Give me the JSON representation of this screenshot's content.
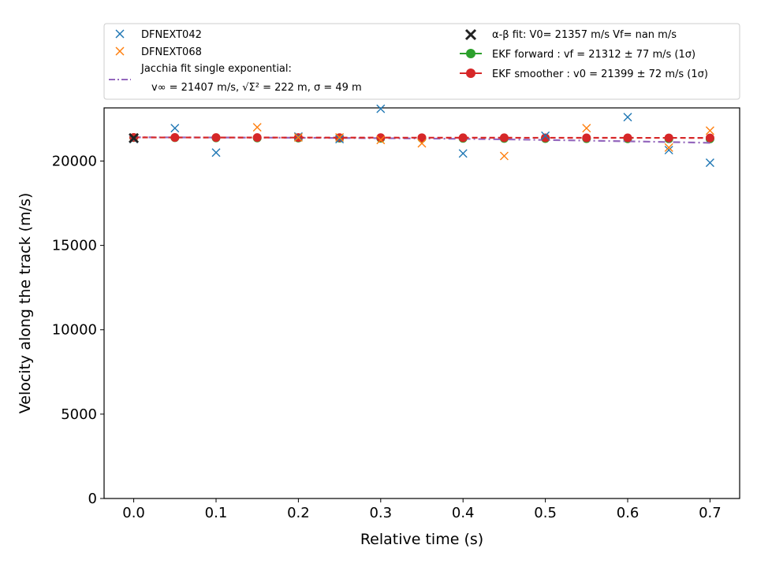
{
  "chart_data": {
    "type": "scatter",
    "xlabel": "Relative time (s)",
    "ylabel": "Velocity along the track (m/s)",
    "xlim": [
      -0.036,
      0.736
    ],
    "ylim": [
      0,
      23150
    ],
    "xticks": [
      0.0,
      0.1,
      0.2,
      0.3,
      0.4,
      0.5,
      0.6,
      0.7
    ],
    "xtick_labels": [
      "0.0",
      "0.1",
      "0.2",
      "0.3",
      "0.4",
      "0.5",
      "0.6",
      "0.7"
    ],
    "yticks": [
      0,
      5000,
      10000,
      15000,
      20000
    ],
    "ytick_labels": [
      "0",
      "5000",
      "10000",
      "15000",
      "20000"
    ],
    "grid": false,
    "legend_placement": "above plot",
    "colors": {
      "dfnext042": "#1f77b4",
      "dfnext068": "#ff7f0e",
      "jacchia": "#9467bd",
      "alpha_beta": "#222222",
      "ekf_forward": "#2ca02c",
      "ekf_smoother": "#d62728"
    },
    "series": [
      {
        "name": "DFNEXT042",
        "marker": "x",
        "x": [
          0.0,
          0.05,
          0.1,
          0.2,
          0.25,
          0.3,
          0.4,
          0.5,
          0.6,
          0.65,
          0.7
        ],
        "y": [
          21300,
          21950,
          20500,
          21450,
          21300,
          23100,
          20450,
          21500,
          22600,
          20650,
          19900
        ]
      },
      {
        "name": "DFNEXT068",
        "marker": "x",
        "x": [
          0.0,
          0.15,
          0.2,
          0.25,
          0.3,
          0.35,
          0.45,
          0.55,
          0.65,
          0.7
        ],
        "y": [
          21400,
          22000,
          21400,
          21400,
          21250,
          21050,
          20300,
          21950,
          20800,
          21800
        ]
      },
      {
        "name": "Jacchia fit single exponential:",
        "name_line2": "v∞ = 21407 m/s, √Σ² = 222 m, σ = 49 m",
        "style": "dashdot",
        "x": [
          0.0,
          0.1,
          0.2,
          0.3,
          0.4,
          0.5,
          0.6,
          0.7
        ],
        "y": [
          21407,
          21395,
          21380,
          21355,
          21315,
          21250,
          21170,
          21080
        ]
      },
      {
        "name": "α-β fit: V0= 21357 m/s   Vf= nan m/s",
        "marker": "X",
        "x": [
          0.0
        ],
        "y": [
          21357
        ]
      },
      {
        "name": "EKF forward : vf =  21312 ± 77 m/s (1σ)",
        "marker": "o",
        "x": [
          0.0,
          0.05,
          0.1,
          0.15,
          0.2,
          0.25,
          0.3,
          0.35,
          0.4,
          0.45,
          0.5,
          0.55,
          0.6,
          0.65,
          0.7
        ],
        "y": [
          21390,
          21380,
          21370,
          21365,
          21360,
          21355,
          21350,
          21345,
          21340,
          21335,
          21330,
          21325,
          21320,
          21315,
          21312
        ]
      },
      {
        "name": "EKF smoother : v0 =  21399 ± 72 m/s (1σ)",
        "marker": "o",
        "style": "dashed",
        "x": [
          0.0,
          0.05,
          0.1,
          0.15,
          0.2,
          0.25,
          0.3,
          0.35,
          0.4,
          0.45,
          0.5,
          0.55,
          0.6,
          0.65,
          0.7
        ],
        "y": [
          21399,
          21397,
          21395,
          21393,
          21391,
          21389,
          21387,
          21385,
          21383,
          21381,
          21379,
          21377,
          21375,
          21373,
          21371
        ]
      }
    ]
  },
  "legend": {
    "dfnext042": "DFNEXT042",
    "dfnext068": "DFNEXT068",
    "jacchia_line1": "Jacchia fit single exponential:",
    "jacchia_line2": "v∞ = 21407 m/s, √Σ² = 222 m, σ = 49 m",
    "alpha_beta": "α-β fit: V0= 21357 m/s   Vf= nan m/s",
    "ekf_forward": "EKF forward : vf =  21312 ± 77 m/s (1σ)",
    "ekf_smoother": "EKF smoother : v0 =  21399 ± 72 m/s (1σ)"
  }
}
